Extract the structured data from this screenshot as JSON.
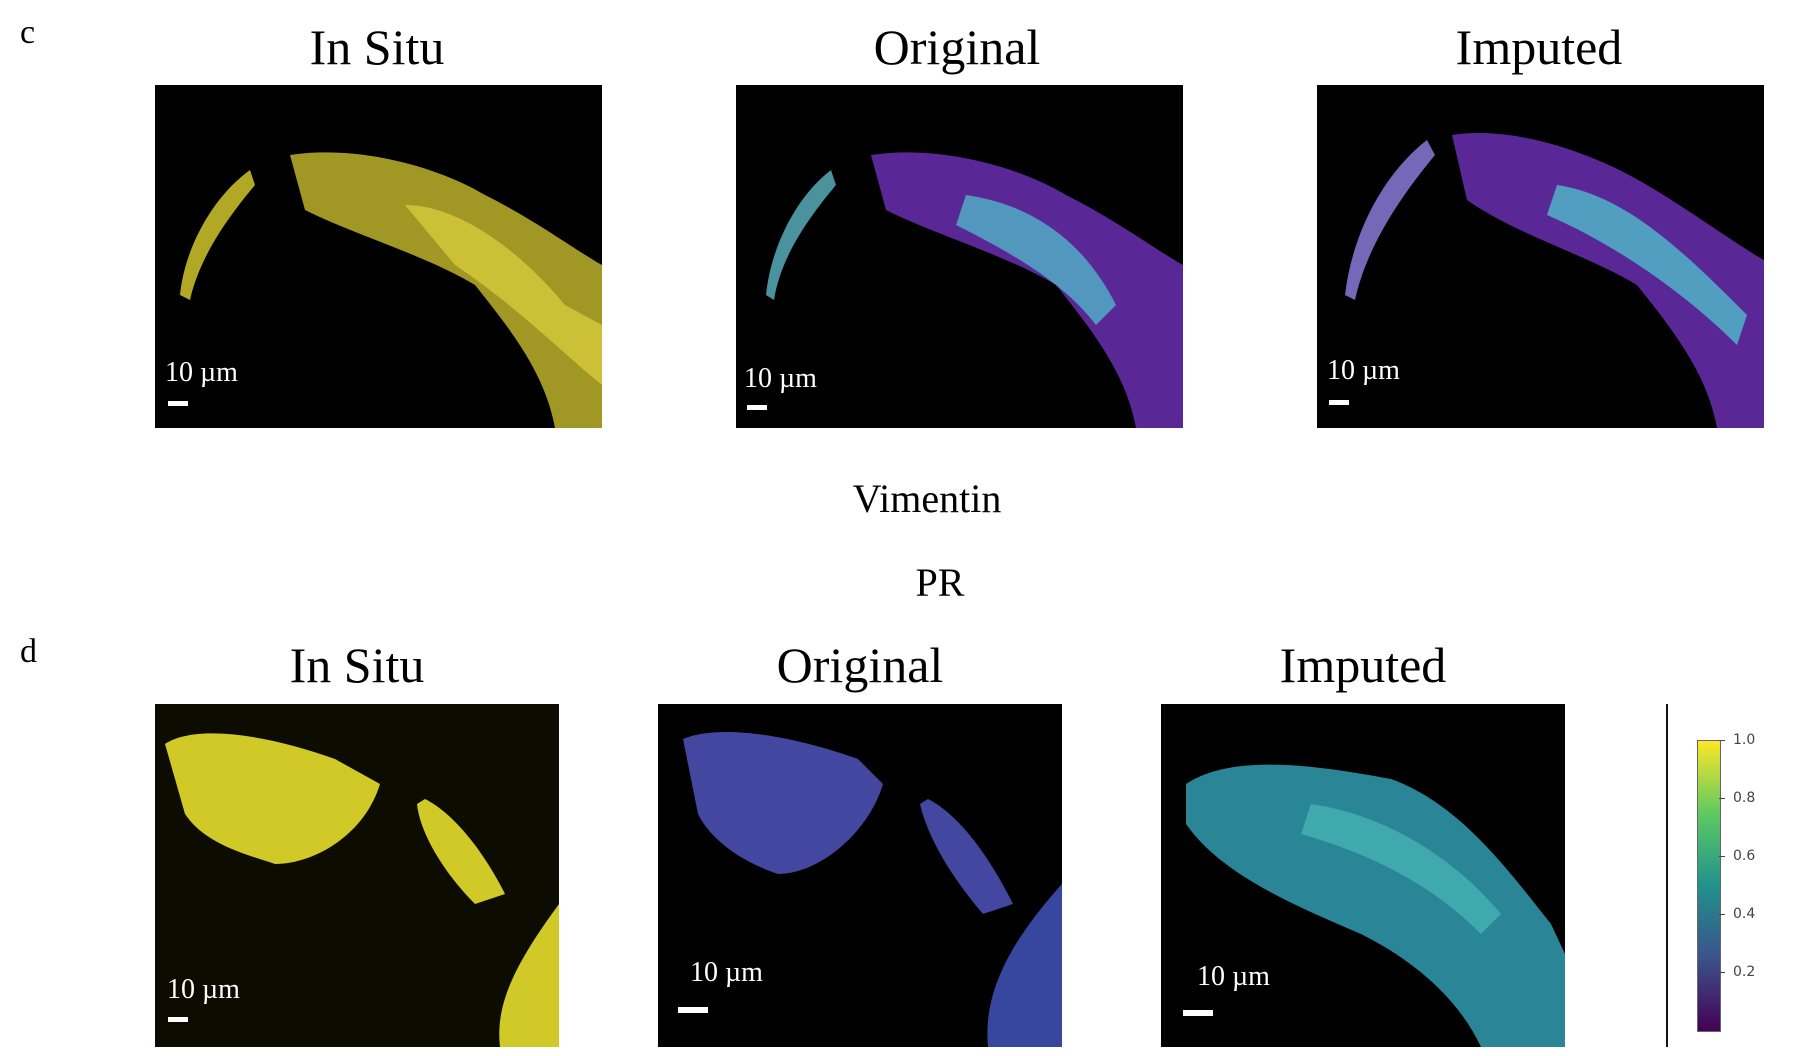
{
  "panel_c": {
    "letter": "c",
    "titles": [
      "In Situ",
      "Original",
      "Imputed"
    ],
    "caption": "Vimentin",
    "scale_labels": [
      "10 µm",
      "10 µm",
      "10 µm"
    ]
  },
  "panel_d": {
    "letter": "d",
    "caption": "PR",
    "titles": [
      "In Situ",
      "Original",
      "Imputed"
    ],
    "scale_labels": [
      "10 µm",
      "10 µm",
      "10 µm"
    ]
  },
  "colorbar": {
    "ticks": [
      "1.0",
      "0.8",
      "0.6",
      "0.4",
      "0.2"
    ],
    "colormap": [
      "#440154",
      "#3b528b",
      "#21918c",
      "#5ec962",
      "#fde725"
    ]
  },
  "colors": {
    "in_situ": "#d8cf3a",
    "viridis_low": "#440154",
    "viridis_high": "#fde725"
  }
}
